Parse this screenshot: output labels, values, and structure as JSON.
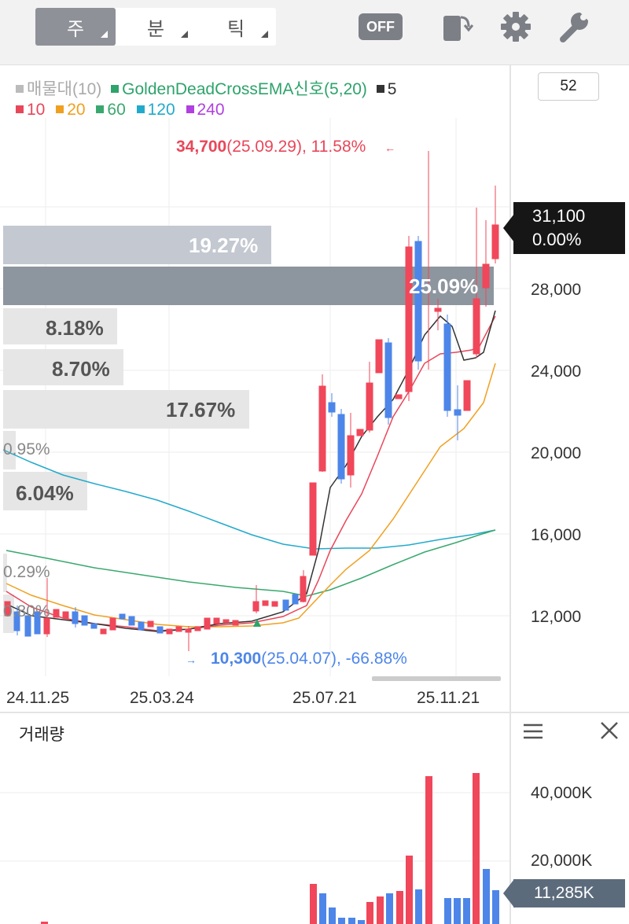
{
  "toolbar": {
    "periods": [
      {
        "label": "주",
        "active": true
      },
      {
        "label": "분",
        "active": false
      },
      {
        "label": "틱",
        "active": false
      }
    ],
    "off_badge": "OFF",
    "icons": [
      "rotate-screen-icon",
      "gear-icon",
      "wrench-icon"
    ]
  },
  "legend": {
    "line1": [
      {
        "text": "매물대(10)",
        "color": "#bbbbbb"
      },
      {
        "text": "GoldenDeadCrossEMA신호(5,20)",
        "color": "#2ea36b"
      },
      {
        "text": "5",
        "color": "#333333"
      }
    ],
    "line2": [
      {
        "text": "10",
        "color": "#e8475a"
      },
      {
        "text": "20",
        "color": "#f0a020"
      },
      {
        "text": "60",
        "color": "#3aa86e"
      },
      {
        "text": "120",
        "color": "#22aacc"
      },
      {
        "text": "240",
        "color": "#b040e0"
      }
    ]
  },
  "period_input": "52",
  "high_annotation": {
    "price": "34,700",
    "rest": "(25.09.29), 11.58%",
    "arrow": "←"
  },
  "low_annotation": {
    "price": "10,300",
    "rest": "(25.04.07), -66.88%",
    "arrow": "→"
  },
  "current_price": {
    "price": "31,100",
    "change": "0.00%"
  },
  "volume_profile": [
    {
      "label": "19.27%",
      "pct": 19.27
    },
    {
      "label": "25.09%",
      "pct": 25.09
    },
    {
      "label": "8.18%",
      "pct": 8.18
    },
    {
      "label": "8.70%",
      "pct": 8.7
    },
    {
      "label": "17.67%",
      "pct": 17.67
    },
    {
      "label": "0.95%",
      "pct": 0.95
    },
    {
      "label": "6.04%",
      "pct": 6.04
    },
    {
      "label": "0.29%",
      "pct": 0.29
    },
    {
      "label": "0.80%",
      "pct": 0.8
    }
  ],
  "y_axis": [
    "28,000",
    "24,000",
    "20,000",
    "16,000",
    "12,000"
  ],
  "x_axis": [
    "24.11.25",
    "25.03.24",
    "25.07.21",
    "25.11.21"
  ],
  "volume_panel": {
    "title": "거래량",
    "y_axis": [
      "40,000K",
      "20,000K"
    ],
    "current": "11,285K"
  },
  "colors": {
    "up": "#f0475a",
    "down": "#4d86e8",
    "accent": "#161616"
  }
}
